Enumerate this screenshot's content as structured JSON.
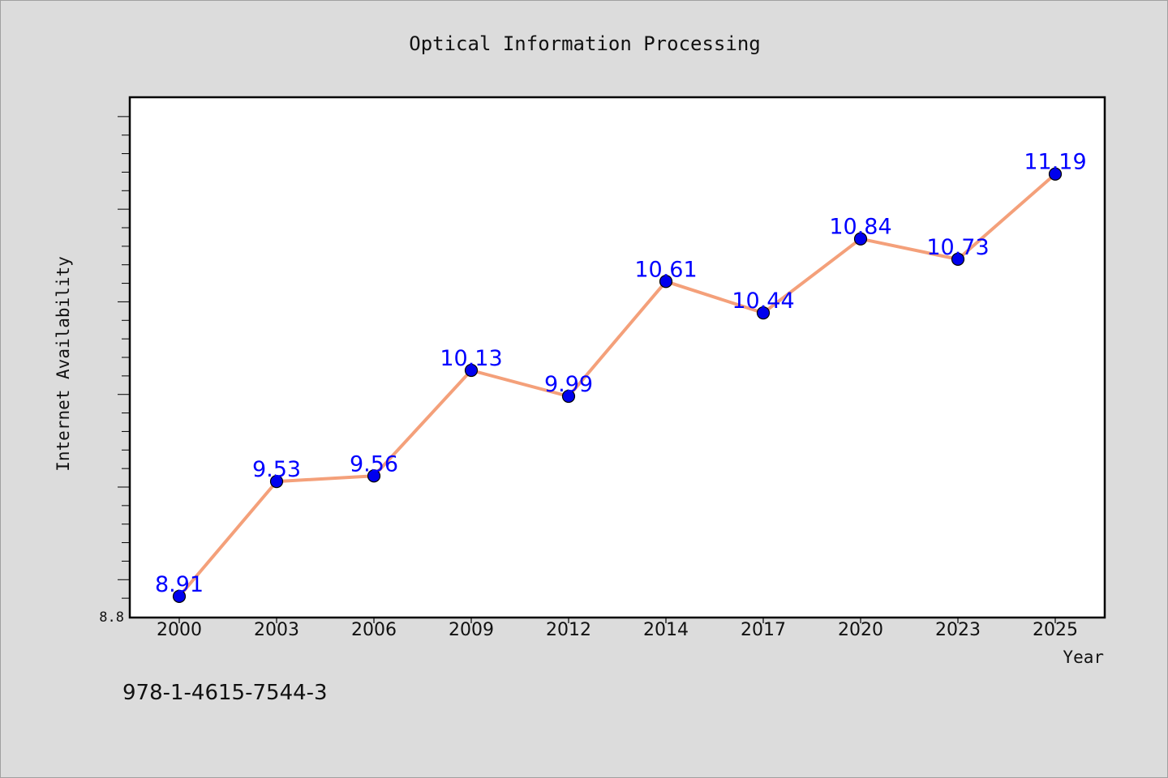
{
  "chart_data": {
    "type": "line",
    "title": "Optical Information Processing",
    "xlabel": "Year",
    "ylabel": "Internet Availability",
    "categories": [
      "2000",
      "2003",
      "2006",
      "2009",
      "2012",
      "2014",
      "2017",
      "2020",
      "2023",
      "2025"
    ],
    "series": [
      {
        "values": [
          8.91,
          9.53,
          9.56,
          10.13,
          9.99,
          10.61,
          10.44,
          10.84,
          10.73,
          11.19
        ]
      }
    ],
    "data_labels": [
      "8.91",
      "9.53",
      "9.56",
      "10.13",
      "9.99",
      "10.61",
      "10.44",
      "10.84",
      "10.73",
      "11.19"
    ],
    "ytick_labels": [
      "8.8"
    ],
    "ylim": [
      8.8,
      11.6
    ],
    "grid": false,
    "legend": "none",
    "colors": {
      "line": "#f4a07a",
      "marker": "#0000ee",
      "label": "#0000ff",
      "plot_bg": "#ffffff",
      "page_bg": "#dcdcdc"
    },
    "footnote": "978-1-4615-7544-3"
  }
}
